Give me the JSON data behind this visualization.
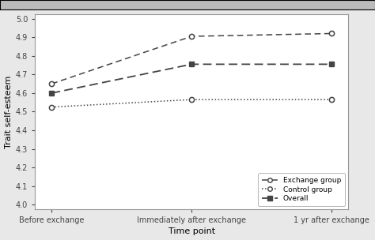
{
  "x_labels": [
    "Before exchange",
    "Immediately after exchange",
    "1 yr after exchange"
  ],
  "x_positions": [
    0,
    1,
    2
  ],
  "exchange_group": [
    4.65,
    4.905,
    4.92
  ],
  "control_group": [
    4.525,
    4.565,
    4.565
  ],
  "overall": [
    4.6,
    4.755,
    4.755
  ],
  "ylabel": "Trait self-esteem",
  "xlabel": "Time point",
  "ylim": [
    3.975,
    5.025
  ],
  "yticks": [
    4.0,
    4.1,
    4.2,
    4.3,
    4.4,
    4.5,
    4.6,
    4.7,
    4.8,
    4.9,
    5.0
  ],
  "line_color": "#444444",
  "legend_labels": [
    "Exchange group",
    "Control group",
    "Overall"
  ],
  "bg_color": "#f0f0f0",
  "plot_bg": "#ffffff",
  "title_bar_color": "#cccccc"
}
